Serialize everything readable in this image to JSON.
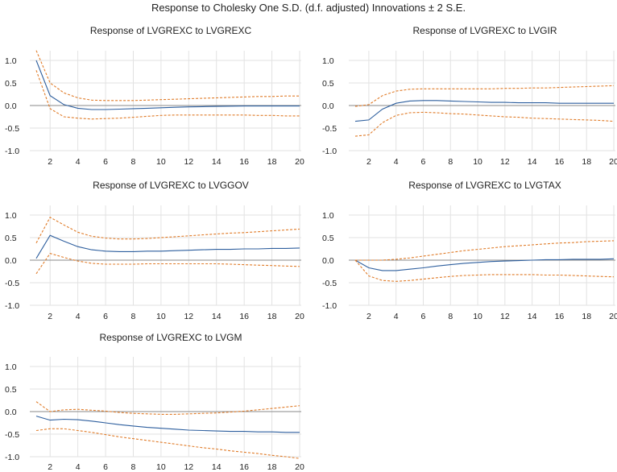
{
  "figure_title": "Response to Cholesky One S.D. (d.f. adjusted) Innovations ± 2 S.E.",
  "colors": {
    "response": "#2e5f9e",
    "bands": "#e07b28"
  },
  "chart_data": [
    {
      "type": "line",
      "title": "Response of LVGREXC to LVGREXC",
      "x": [
        1,
        2,
        3,
        4,
        5,
        6,
        7,
        8,
        9,
        10,
        11,
        12,
        13,
        14,
        15,
        16,
        17,
        18,
        19,
        20
      ],
      "x_ticks": [
        "2",
        "4",
        "6",
        "8",
        "10",
        "12",
        "14",
        "16",
        "18",
        "20"
      ],
      "ylim": [
        -1.0,
        1.0
      ],
      "y_ticks": [
        "1.0",
        "0.5",
        "0.0",
        "-0.5",
        "-1.0"
      ],
      "grid": true,
      "series": [
        {
          "role": "response",
          "values": [
            1.0,
            0.22,
            0.02,
            -0.06,
            -0.09,
            -0.09,
            -0.08,
            -0.07,
            -0.06,
            -0.05,
            -0.04,
            -0.03,
            -0.025,
            -0.02,
            -0.015,
            -0.01,
            -0.01,
            -0.01,
            -0.01,
            -0.01
          ]
        },
        {
          "role": "upper_band",
          "values": [
            1.22,
            0.5,
            0.28,
            0.17,
            0.12,
            0.11,
            0.11,
            0.11,
            0.12,
            0.13,
            0.14,
            0.15,
            0.16,
            0.17,
            0.18,
            0.19,
            0.2,
            0.2,
            0.21,
            0.21
          ]
        },
        {
          "role": "lower_band",
          "values": [
            0.78,
            -0.07,
            -0.25,
            -0.28,
            -0.3,
            -0.29,
            -0.28,
            -0.26,
            -0.24,
            -0.22,
            -0.21,
            -0.21,
            -0.21,
            -0.21,
            -0.21,
            -0.21,
            -0.22,
            -0.22,
            -0.23,
            -0.23
          ]
        }
      ]
    },
    {
      "type": "line",
      "title": "Response of LVGREXC to LVGIR",
      "x": [
        1,
        2,
        3,
        4,
        5,
        6,
        7,
        8,
        9,
        10,
        11,
        12,
        13,
        14,
        15,
        16,
        17,
        18,
        19,
        20
      ],
      "x_ticks": [
        "2",
        "4",
        "6",
        "8",
        "10",
        "12",
        "14",
        "16",
        "18",
        "20"
      ],
      "ylim": [
        -1.0,
        1.0
      ],
      "y_ticks": [
        "1.0",
        "0.5",
        "0.0",
        "-0.5",
        "-1.0"
      ],
      "grid": true,
      "series": [
        {
          "role": "response",
          "values": [
            -0.35,
            -0.32,
            -0.08,
            0.05,
            0.1,
            0.11,
            0.11,
            0.1,
            0.09,
            0.08,
            0.07,
            0.07,
            0.06,
            0.06,
            0.06,
            0.05,
            0.05,
            0.05,
            0.05,
            0.05
          ]
        },
        {
          "role": "upper_band",
          "values": [
            -0.02,
            0.02,
            0.22,
            0.32,
            0.36,
            0.37,
            0.37,
            0.37,
            0.37,
            0.37,
            0.37,
            0.38,
            0.38,
            0.39,
            0.39,
            0.4,
            0.41,
            0.42,
            0.43,
            0.44
          ]
        },
        {
          "role": "lower_band",
          "values": [
            -0.68,
            -0.65,
            -0.38,
            -0.22,
            -0.16,
            -0.15,
            -0.16,
            -0.18,
            -0.19,
            -0.21,
            -0.23,
            -0.25,
            -0.26,
            -0.28,
            -0.29,
            -0.3,
            -0.31,
            -0.32,
            -0.33,
            -0.35
          ]
        }
      ]
    },
    {
      "type": "line",
      "title": "Response of LVGREXC to LVGGOV",
      "x": [
        1,
        2,
        3,
        4,
        5,
        6,
        7,
        8,
        9,
        10,
        11,
        12,
        13,
        14,
        15,
        16,
        17,
        18,
        19,
        20
      ],
      "x_ticks": [
        "2",
        "4",
        "6",
        "8",
        "10",
        "12",
        "14",
        "16",
        "18",
        "20"
      ],
      "ylim": [
        -1.0,
        1.0
      ],
      "y_ticks": [
        "1.0",
        "0.5",
        "0.0",
        "-0.5",
        "-1.0"
      ],
      "grid": true,
      "series": [
        {
          "role": "response",
          "values": [
            0.04,
            0.55,
            0.42,
            0.3,
            0.23,
            0.2,
            0.19,
            0.19,
            0.2,
            0.2,
            0.21,
            0.22,
            0.23,
            0.24,
            0.24,
            0.25,
            0.25,
            0.26,
            0.26,
            0.27
          ]
        },
        {
          "role": "upper_band",
          "values": [
            0.38,
            0.95,
            0.78,
            0.62,
            0.53,
            0.49,
            0.47,
            0.47,
            0.48,
            0.5,
            0.52,
            0.54,
            0.56,
            0.58,
            0.6,
            0.61,
            0.63,
            0.65,
            0.67,
            0.69
          ]
        },
        {
          "role": "lower_band",
          "values": [
            -0.3,
            0.15,
            0.06,
            -0.02,
            -0.07,
            -0.09,
            -0.09,
            -0.09,
            -0.08,
            -0.08,
            -0.08,
            -0.08,
            -0.08,
            -0.08,
            -0.09,
            -0.1,
            -0.11,
            -0.12,
            -0.13,
            -0.14
          ]
        }
      ]
    },
    {
      "type": "line",
      "title": "Response of LVGREXC to LVGTAX",
      "x": [
        1,
        2,
        3,
        4,
        5,
        6,
        7,
        8,
        9,
        10,
        11,
        12,
        13,
        14,
        15,
        16,
        17,
        18,
        19,
        20
      ],
      "x_ticks": [
        "2",
        "4",
        "6",
        "8",
        "10",
        "12",
        "14",
        "16",
        "18",
        "20"
      ],
      "ylim": [
        -1.0,
        1.0
      ],
      "y_ticks": [
        "1.0",
        "0.5",
        "0.0",
        "-0.5",
        "-1.0"
      ],
      "grid": true,
      "series": [
        {
          "role": "response",
          "values": [
            0.0,
            -0.17,
            -0.23,
            -0.23,
            -0.2,
            -0.17,
            -0.13,
            -0.1,
            -0.07,
            -0.05,
            -0.03,
            -0.02,
            -0.01,
            0.0,
            0.01,
            0.01,
            0.02,
            0.02,
            0.02,
            0.03
          ]
        },
        {
          "role": "upper_band",
          "values": [
            0.0,
            0.0,
            0.0,
            0.02,
            0.05,
            0.09,
            0.13,
            0.17,
            0.21,
            0.24,
            0.27,
            0.3,
            0.32,
            0.34,
            0.36,
            0.38,
            0.39,
            0.41,
            0.42,
            0.43
          ]
        },
        {
          "role": "lower_band",
          "values": [
            0.0,
            -0.35,
            -0.45,
            -0.47,
            -0.45,
            -0.42,
            -0.39,
            -0.36,
            -0.34,
            -0.33,
            -0.32,
            -0.32,
            -0.32,
            -0.32,
            -0.33,
            -0.33,
            -0.34,
            -0.35,
            -0.36,
            -0.37
          ]
        }
      ]
    },
    {
      "type": "line",
      "title": "Response of LVGREXC to LVGM",
      "x": [
        1,
        2,
        3,
        4,
        5,
        6,
        7,
        8,
        9,
        10,
        11,
        12,
        13,
        14,
        15,
        16,
        17,
        18,
        19,
        20
      ],
      "x_ticks": [
        "2",
        "4",
        "6",
        "8",
        "10",
        "12",
        "14",
        "16",
        "18",
        "20"
      ],
      "ylim": [
        -1.0,
        1.0
      ],
      "y_ticks": [
        "1.0",
        "0.5",
        "0.0",
        "-0.5",
        "-1.0"
      ],
      "grid": true,
      "series": [
        {
          "role": "response",
          "values": [
            -0.1,
            -0.19,
            -0.17,
            -0.18,
            -0.21,
            -0.25,
            -0.29,
            -0.32,
            -0.35,
            -0.37,
            -0.39,
            -0.41,
            -0.42,
            -0.43,
            -0.44,
            -0.44,
            -0.45,
            -0.45,
            -0.46,
            -0.46
          ]
        },
        {
          "role": "upper_band",
          "values": [
            0.22,
            0.0,
            0.04,
            0.05,
            0.03,
            0.01,
            -0.02,
            -0.04,
            -0.05,
            -0.06,
            -0.06,
            -0.05,
            -0.04,
            -0.03,
            -0.01,
            0.01,
            0.04,
            0.07,
            0.1,
            0.13
          ]
        },
        {
          "role": "lower_band",
          "values": [
            -0.42,
            -0.38,
            -0.38,
            -0.42,
            -0.46,
            -0.51,
            -0.56,
            -0.6,
            -0.64,
            -0.68,
            -0.72,
            -0.76,
            -0.8,
            -0.83,
            -0.87,
            -0.9,
            -0.93,
            -0.97,
            -1.0,
            -1.04
          ]
        }
      ]
    }
  ]
}
